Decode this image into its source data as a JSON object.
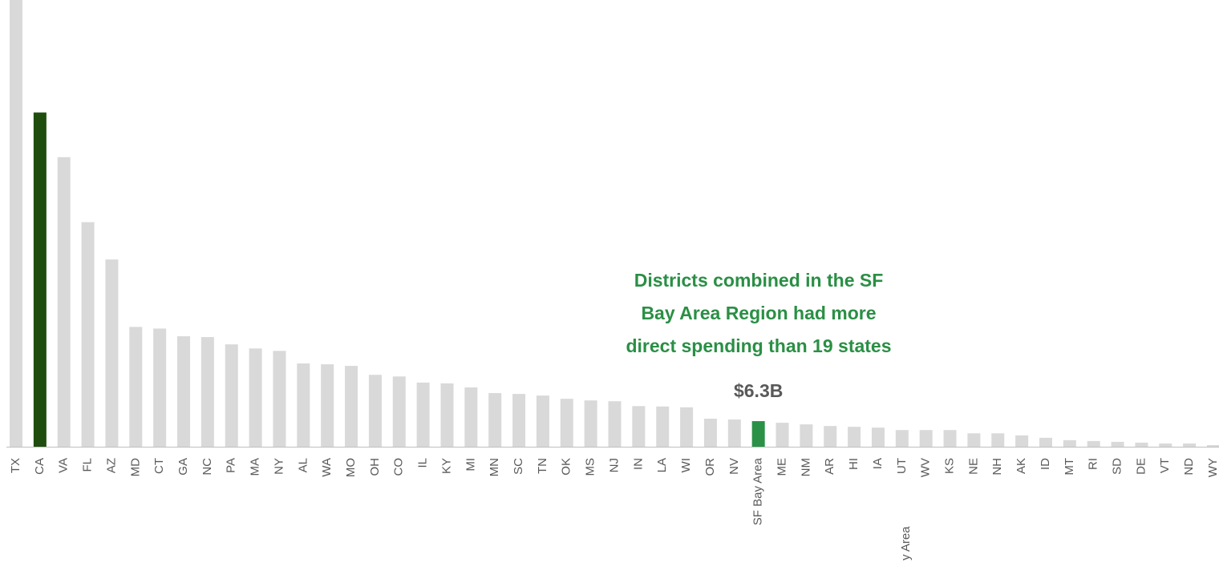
{
  "chart_data": {
    "type": "bar",
    "categories": [
      "TX",
      "CA",
      "VA",
      "FL",
      "AZ",
      "MD",
      "CT",
      "GA",
      "NC",
      "PA",
      "MA",
      "NY",
      "AL",
      "WA",
      "MO",
      "OH",
      "CO",
      "IL",
      "KY",
      "MI",
      "MN",
      "SC",
      "TN",
      "OK",
      "MS",
      "NJ",
      "IN",
      "LA",
      "WI",
      "OR",
      "NV",
      "SF Bay Area",
      "ME",
      "NM",
      "AR",
      "HI",
      "IA",
      "UT",
      "WV",
      "KS",
      "NE",
      "NH",
      "AK",
      "ID",
      "MT",
      "RI",
      "SD",
      "DE",
      "VT",
      "ND",
      "WY"
    ],
    "values": [
      110,
      82.3,
      71.3,
      55.3,
      46.1,
      29.5,
      29.1,
      27.2,
      27.0,
      25.2,
      24.2,
      23.6,
      20.5,
      20.3,
      19.9,
      17.7,
      17.3,
      15.8,
      15.6,
      14.6,
      13.2,
      13.0,
      12.6,
      11.8,
      11.4,
      11.2,
      10.0,
      9.9,
      9.7,
      6.9,
      6.7,
      6.3,
      5.9,
      5.5,
      5.1,
      4.9,
      4.7,
      4.1,
      4.1,
      4.1,
      3.3,
      3.3,
      2.8,
      2.2,
      1.6,
      1.4,
      1.2,
      1.0,
      0.8,
      0.8,
      0.4
    ],
    "value_labels": [
      null,
      null,
      null,
      null,
      null,
      null,
      null,
      null,
      null,
      null,
      null,
      null,
      null,
      null,
      null,
      null,
      null,
      null,
      null,
      null,
      null,
      null,
      null,
      null,
      null,
      null,
      null,
      null,
      null,
      null,
      null,
      "$6.3B",
      null,
      null,
      null,
      null,
      null,
      null,
      null,
      null,
      null,
      null,
      null,
      null,
      null,
      null,
      null,
      null,
      null,
      null,
      null
    ],
    "color": "#d9d9d9",
    "highlight_colors": {
      "CA": "#1f4d0e",
      "SF Bay Area": "#2a9147"
    },
    "annotation": [
      "Districts combined in the SF",
      "Bay Area Region had more",
      "direct spending than 19 states"
    ],
    "stray_label": "y Area"
  }
}
